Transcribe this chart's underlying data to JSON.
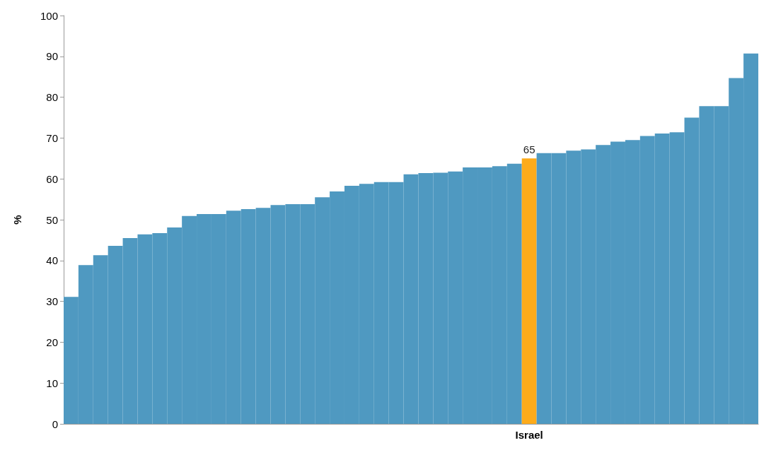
{
  "chart_data": {
    "type": "bar",
    "ylabel": "%",
    "categories": [
      null,
      null,
      null,
      null,
      null,
      null,
      null,
      null,
      null,
      null,
      null,
      null,
      null,
      null,
      null,
      null,
      null,
      null,
      null,
      null,
      null,
      null,
      null,
      null,
      null,
      null,
      null,
      null,
      null,
      null,
      null,
      "Israel",
      null,
      null,
      null,
      null,
      null,
      null,
      null,
      null,
      null,
      null,
      null,
      null,
      null,
      null,
      null
    ],
    "values": [
      31.1,
      38.9,
      41.3,
      43.6,
      45.5,
      46.4,
      46.7,
      48.1,
      50.9,
      51.4,
      51.4,
      52.2,
      52.6,
      52.9,
      53.6,
      53.8,
      53.8,
      55.5,
      56.9,
      58.3,
      58.8,
      59.2,
      59.2,
      61.1,
      61.4,
      61.5,
      61.8,
      62.8,
      62.8,
      63.1,
      63.7,
      65,
      66.3,
      66.3,
      66.9,
      67.2,
      68.3,
      69.1,
      69.5,
      70.5,
      71.1,
      71.4,
      75.0,
      77.8,
      77.8,
      84.7,
      90.7
    ],
    "colors": [
      "#4f99c1",
      "#4f99c1",
      "#4f99c1",
      "#4f99c1",
      "#4f99c1",
      "#4f99c1",
      "#4f99c1",
      "#4f99c1",
      "#4f99c1",
      "#4f99c1",
      "#4f99c1",
      "#4f99c1",
      "#4f99c1",
      "#4f99c1",
      "#4f99c1",
      "#4f99c1",
      "#4f99c1",
      "#4f99c1",
      "#4f99c1",
      "#4f99c1",
      "#4f99c1",
      "#4f99c1",
      "#4f99c1",
      "#4f99c1",
      "#4f99c1",
      "#4f99c1",
      "#4f99c1",
      "#4f99c1",
      "#4f99c1",
      "#4f99c1",
      "#4f99c1",
      "#fdab1a",
      "#4f99c1",
      "#4f99c1",
      "#4f99c1",
      "#4f99c1",
      "#4f99c1",
      "#4f99c1",
      "#4f99c1",
      "#4f99c1",
      "#4f99c1",
      "#4f99c1",
      "#4f99c1",
      "#4f99c1",
      "#4f99c1",
      "#4f99c1",
      "#4f99c1"
    ],
    "value_labels": [
      null,
      null,
      null,
      null,
      null,
      null,
      null,
      null,
      null,
      null,
      null,
      null,
      null,
      null,
      null,
      null,
      null,
      null,
      null,
      null,
      null,
      null,
      null,
      null,
      null,
      null,
      null,
      null,
      null,
      null,
      null,
      "65",
      null,
      null,
      null,
      null,
      null,
      null,
      null,
      null,
      null,
      null,
      null,
      null,
      null,
      null,
      null
    ],
    "ylim": [
      0,
      100
    ],
    "yticks": [
      0,
      10,
      20,
      30,
      40,
      50,
      60,
      70,
      80,
      90,
      100
    ],
    "grid": false
  }
}
